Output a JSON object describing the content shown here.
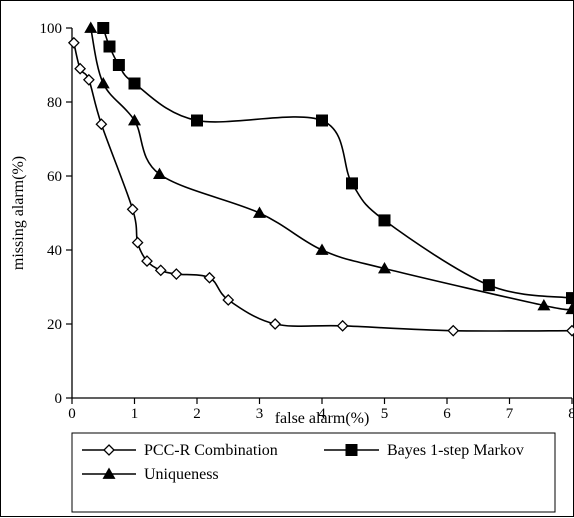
{
  "chart_data": {
    "type": "line",
    "title": "",
    "xlabel": "false alarm(%)",
    "ylabel": "missing alarm(%)",
    "xlim": [
      0,
      8
    ],
    "ylim": [
      0,
      100
    ],
    "x_ticks": [
      "0",
      "1",
      "2",
      "3",
      "4",
      "5",
      "6",
      "7",
      "8"
    ],
    "y_ticks": [
      "0",
      "20",
      "40",
      "60",
      "80",
      "100"
    ],
    "grid": false,
    "legend_position": "bottom",
    "series": [
      {
        "name": "PCC-R Combination",
        "marker": "open-diamond",
        "color": "#000000",
        "points": [
          [
            0.03,
            96
          ],
          [
            0.13,
            89
          ],
          [
            0.27,
            86
          ],
          [
            0.47,
            74
          ],
          [
            0.97,
            51
          ],
          [
            1.05,
            42
          ],
          [
            1.2,
            37
          ],
          [
            1.42,
            34.5
          ],
          [
            1.67,
            33.5
          ],
          [
            2.2,
            32.5
          ],
          [
            2.5,
            26.5
          ],
          [
            3.25,
            20
          ],
          [
            4.33,
            19.5
          ],
          [
            6.1,
            18.2
          ],
          [
            8.0,
            18.2
          ]
        ]
      },
      {
        "name": "Bayes 1-step Markov",
        "marker": "filled-square",
        "color": "#000000",
        "points": [
          [
            0.5,
            100
          ],
          [
            0.6,
            95
          ],
          [
            0.75,
            90
          ],
          [
            1.0,
            85
          ],
          [
            2.0,
            75
          ],
          [
            4.0,
            75
          ],
          [
            4.48,
            58
          ],
          [
            5.0,
            48
          ],
          [
            6.67,
            30.5
          ],
          [
            8.0,
            27
          ]
        ]
      },
      {
        "name": "Uniqueness",
        "marker": "filled-triangle",
        "color": "#000000",
        "points": [
          [
            0.3,
            100
          ],
          [
            0.5,
            85
          ],
          [
            1.0,
            75
          ],
          [
            1.4,
            60.5
          ],
          [
            3.0,
            50
          ],
          [
            4.0,
            40
          ],
          [
            5.0,
            35
          ],
          [
            7.55,
            25
          ],
          [
            8.0,
            24
          ]
        ]
      }
    ]
  }
}
